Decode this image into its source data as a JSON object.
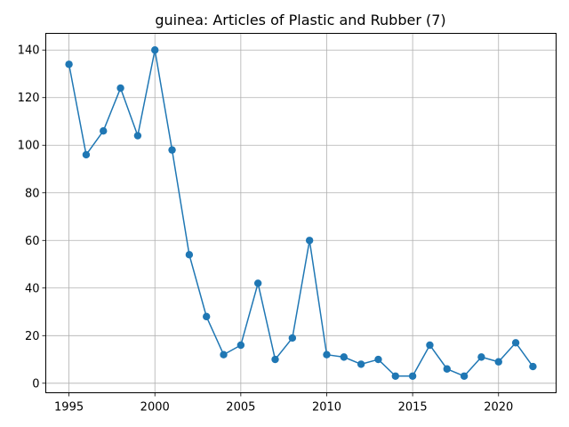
{
  "chart_data": {
    "type": "line",
    "title": "guinea: Articles of Plastic and Rubber (7)",
    "xlabel": "",
    "ylabel": "",
    "x": [
      1995,
      1996,
      1997,
      1998,
      1999,
      2000,
      2001,
      2002,
      2003,
      2004,
      2005,
      2006,
      2007,
      2008,
      2009,
      2010,
      2011,
      2012,
      2013,
      2014,
      2015,
      2016,
      2017,
      2018,
      2019,
      2020,
      2021,
      2022
    ],
    "series": [
      {
        "values": [
          134,
          96,
          106,
          124,
          104,
          140,
          98,
          54,
          28,
          12,
          16,
          42,
          10,
          19,
          60,
          12,
          11,
          8,
          10,
          3,
          3,
          16,
          6,
          3,
          11,
          9,
          17,
          7
        ]
      }
    ],
    "xlim": [
      1993.65,
      2023.35
    ],
    "ylim": [
      -4,
      147
    ],
    "xticks": [
      1995,
      2000,
      2005,
      2010,
      2015,
      2020
    ],
    "xtick_labels": [
      "1995",
      "2000",
      "2005",
      "2010",
      "2015",
      "2020"
    ],
    "yticks": [
      0,
      20,
      40,
      60,
      80,
      100,
      120,
      140
    ],
    "ytick_labels": [
      "0",
      "20",
      "40",
      "60",
      "80",
      "100",
      "120",
      "140"
    ],
    "grid": true,
    "line_color": "#1f77b4",
    "marker": "circle"
  }
}
